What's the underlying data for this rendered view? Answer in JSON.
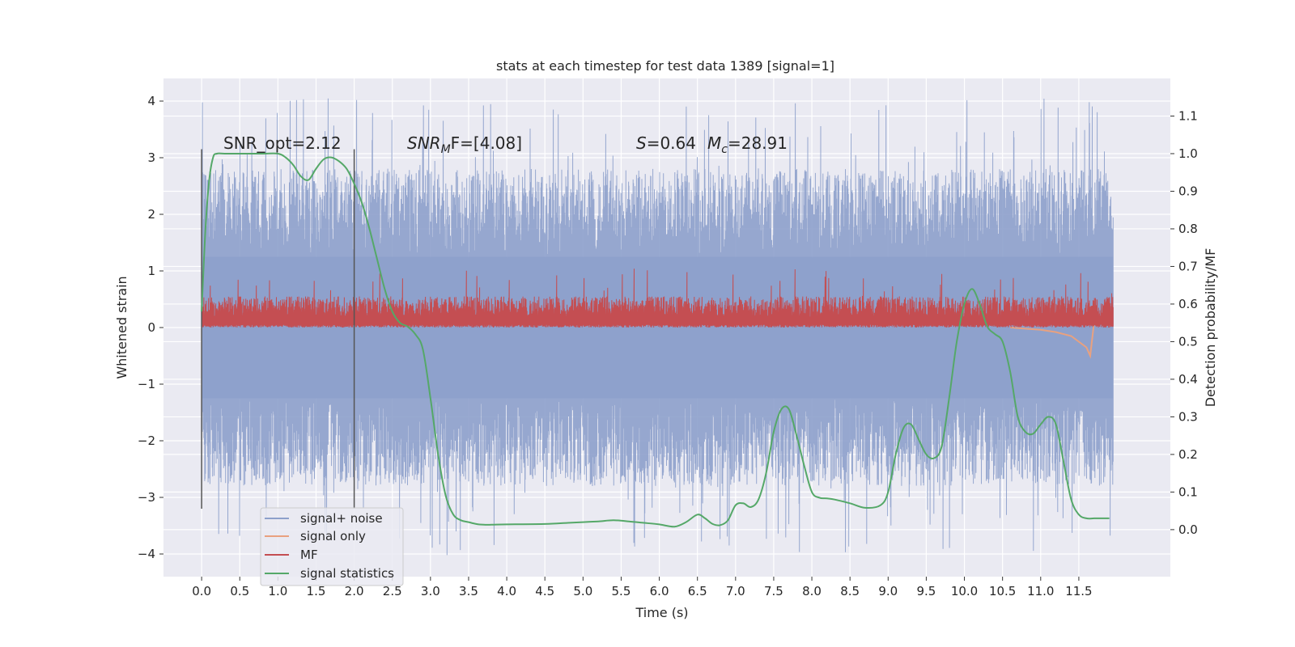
{
  "chart_data": {
    "type": "line",
    "title": "stats at each timestep for test data 1389 [signal=1]",
    "xlabel": "Time (s)",
    "ylabel_left": "Whitened strain",
    "ylabel_right": "Detection probability/MF",
    "xlim": [
      -0.5,
      12.7
    ],
    "ylim_left": [
      -4.4,
      4.4
    ],
    "ylim_right": [
      -0.125,
      1.2
    ],
    "xticks": [
      "0.0",
      "0.5",
      "1.0",
      "1.5",
      "2.0",
      "2.5",
      "3.0",
      "3.5",
      "4.0",
      "4.5",
      "5.0",
      "5.5",
      "6.0",
      "6.5",
      "7.0",
      "7.5",
      "8.0",
      "8.5",
      "9.0",
      "9.5",
      "10.0",
      "10.5",
      "11.0",
      "11.5"
    ],
    "yticks_left": [
      "4",
      "3",
      "2",
      "1",
      "0",
      "−1",
      "−2",
      "−3",
      "−4"
    ],
    "yticks_right": [
      "1.1",
      "1.0",
      "0.9",
      "0.8",
      "0.7",
      "0.6",
      "0.5",
      "0.4",
      "0.3",
      "0.2",
      "0.1",
      "0.0"
    ],
    "grid": true,
    "legend_position": "lower-left",
    "annotations": {
      "snr_opt": "SNR_opt=2.12",
      "snr_mf_pre": "SNR",
      "snr_mf_sub": "M",
      "snr_mf_post": "F=[4.08]",
      "s_var": "S",
      "s_val": "=0.64",
      "mc_var": "M",
      "mc_sub": "c",
      "mc_val": "=28.91"
    },
    "vlines": [
      0.0,
      2.0
    ],
    "series": [
      {
        "name": "signal+ noise",
        "color": "#8da0cb",
        "style": "dense noise, roughly uniform amplitude",
        "x_range": [
          0.0,
          11.95
        ],
        "envelope_upper": 2.8,
        "envelope_lower": -2.8,
        "peak_max": 4.05,
        "peak_min": -4.05
      },
      {
        "name": "signal only",
        "color": "#e9a17f",
        "style": "small chirp near end",
        "x": [
          10.6,
          10.8,
          11.0,
          11.2,
          11.4,
          11.5,
          11.6,
          11.65,
          11.7
        ],
        "y": [
          0.0,
          -0.02,
          -0.04,
          -0.08,
          -0.15,
          -0.25,
          -0.35,
          -0.5,
          0.1
        ]
      },
      {
        "name": "MF",
        "color": "#c44e52",
        "style": "dense noisy band",
        "x_range": [
          0.0,
          11.95
        ],
        "band_lower": 0.0,
        "band_upper": 0.55,
        "peak_max": 1.05
      },
      {
        "name": "signal statistics",
        "color": "#55a868",
        "axis": "right",
        "x": [
          0.0,
          0.05,
          0.1,
          0.15,
          0.2,
          0.3,
          0.5,
          0.8,
          1.0,
          1.1,
          1.2,
          1.3,
          1.4,
          1.5,
          1.6,
          1.7,
          1.8,
          1.9,
          2.0,
          2.1,
          2.2,
          2.3,
          2.4,
          2.5,
          2.6,
          2.7,
          2.8,
          2.9,
          3.0,
          3.1,
          3.2,
          3.3,
          3.4,
          3.5,
          3.6,
          3.7,
          3.8,
          4.0,
          4.5,
          4.8,
          5.0,
          5.2,
          5.4,
          5.6,
          5.8,
          6.0,
          6.2,
          6.35,
          6.5,
          6.6,
          6.7,
          6.8,
          6.9,
          7.0,
          7.1,
          7.2,
          7.3,
          7.4,
          7.5,
          7.6,
          7.7,
          7.8,
          7.9,
          8.0,
          8.1,
          8.2,
          8.3,
          8.5,
          8.7,
          8.9,
          9.0,
          9.1,
          9.2,
          9.3,
          9.4,
          9.5,
          9.6,
          9.7,
          9.8,
          9.9,
          10.0,
          10.1,
          10.2,
          10.3,
          10.4,
          10.5,
          10.6,
          10.7,
          10.8,
          10.9,
          11.0,
          11.1,
          11.2,
          11.3,
          11.4,
          11.5,
          11.6,
          11.7,
          11.8,
          11.9
        ],
        "y": [
          0.58,
          0.8,
          0.93,
          0.99,
          1.0,
          1.0,
          1.0,
          1.0,
          1.0,
          0.99,
          0.97,
          0.94,
          0.93,
          0.96,
          0.985,
          0.99,
          0.98,
          0.96,
          0.92,
          0.87,
          0.8,
          0.72,
          0.64,
          0.58,
          0.55,
          0.54,
          0.52,
          0.48,
          0.35,
          0.2,
          0.09,
          0.04,
          0.025,
          0.02,
          0.015,
          0.013,
          0.013,
          0.014,
          0.015,
          0.018,
          0.02,
          0.022,
          0.025,
          0.022,
          0.018,
          0.014,
          0.008,
          0.02,
          0.04,
          0.03,
          0.015,
          0.012,
          0.025,
          0.065,
          0.07,
          0.06,
          0.08,
          0.15,
          0.26,
          0.32,
          0.32,
          0.25,
          0.17,
          0.1,
          0.085,
          0.083,
          0.08,
          0.07,
          0.058,
          0.065,
          0.1,
          0.2,
          0.27,
          0.28,
          0.24,
          0.2,
          0.19,
          0.22,
          0.35,
          0.5,
          0.6,
          0.64,
          0.6,
          0.54,
          0.52,
          0.5,
          0.42,
          0.3,
          0.26,
          0.255,
          0.28,
          0.3,
          0.28,
          0.18,
          0.08,
          0.04,
          0.03,
          0.03,
          0.03,
          0.03
        ]
      }
    ]
  }
}
